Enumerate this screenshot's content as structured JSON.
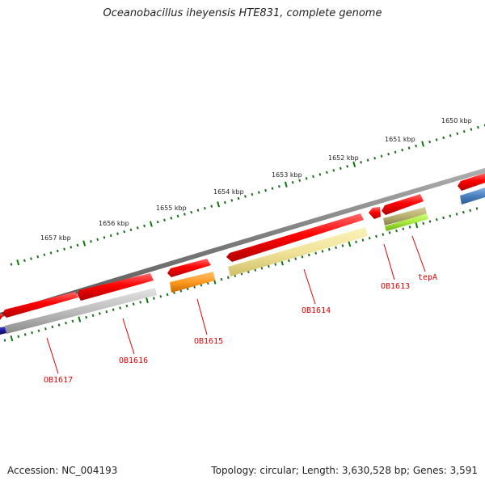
{
  "title": "Oceanobacillus iheyensis HTE831, complete genome",
  "footer": {
    "accession": "Accession: NC_004193",
    "summary": "Topology: circular; Length: 3,630,528 bp; Genes: 3,591"
  },
  "ticks": [
    {
      "label": "1650 kbp"
    },
    {
      "label": "1651 kbp"
    },
    {
      "label": "1652 kbp"
    },
    {
      "label": "1653 kbp"
    },
    {
      "label": "1654 kbp"
    },
    {
      "label": "1655 kbp"
    },
    {
      "label": "1656 kbp"
    },
    {
      "label": "1657 kbp"
    }
  ],
  "genes": [
    {
      "label": "OB1617"
    },
    {
      "label": "OB1616"
    },
    {
      "label": "OB1615"
    },
    {
      "label": "OB1614"
    },
    {
      "label": "OB1613"
    },
    {
      "label": "tepA"
    }
  ],
  "colors": {
    "cds": "#ff0000",
    "backbone": "#7a7a7a",
    "tick_minor": "#1a6b1a",
    "tick_major": "#0b7a0b",
    "label": "#e00000",
    "track_gray": "#c8c8c8",
    "track_yellow": "#f0e39a",
    "track_orange": "#ff9a20",
    "track_olive": "#b8b070",
    "track_lime": "#a8e840",
    "track_blue": "#4a7fbf",
    "track_navy": "#1a1a9a"
  }
}
